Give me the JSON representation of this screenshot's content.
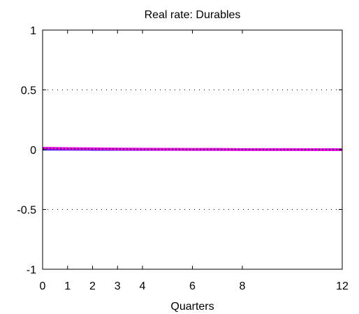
{
  "chart_data": {
    "type": "line",
    "title": "Real rate: Durables",
    "xlabel": "Quarters",
    "ylabel": "",
    "xlim": [
      0,
      12
    ],
    "ylim": [
      -1,
      1
    ],
    "xticks": [
      0,
      1,
      2,
      3,
      4,
      6,
      8,
      12
    ],
    "xtick_labels": [
      "0",
      "1",
      "2",
      "3",
      "4",
      "6",
      "8",
      "12"
    ],
    "yticks": [
      -1,
      -0.5,
      0,
      0.5,
      1
    ],
    "ytick_labels": [
      "-1",
      "-0.5",
      "0",
      "0.5",
      "1"
    ],
    "grid": "y-dotted",
    "x": [
      0,
      1,
      2,
      3,
      4,
      5,
      6,
      7,
      8,
      9,
      10,
      11,
      12
    ],
    "series": [
      {
        "color": "#0000ff",
        "style": "solid",
        "values": [
          0.0,
          -0.001,
          -0.002,
          -0.002,
          -0.003,
          -0.003,
          -0.003,
          -0.003,
          -0.003,
          -0.003,
          -0.003,
          -0.003,
          -0.003
        ]
      },
      {
        "color": "#ff00ff",
        "style": "solid-thick",
        "values": [
          0.012,
          0.009,
          0.007,
          0.005,
          0.004,
          0.003,
          0.002,
          0.002,
          0.001,
          0.001,
          0.001,
          0.0,
          0.0
        ]
      },
      {
        "color": "#404040",
        "style": "dotted",
        "values": [
          0.01,
          0.008,
          0.006,
          0.004,
          0.003,
          0.003,
          0.002,
          0.002,
          0.002,
          0.001,
          0.001,
          0.001,
          0.001
        ]
      }
    ]
  }
}
